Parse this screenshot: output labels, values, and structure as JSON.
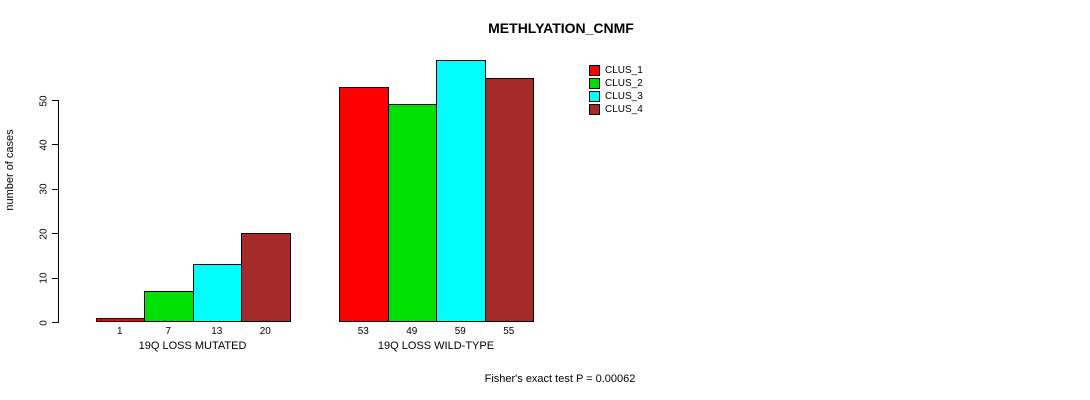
{
  "title": "METHLYATION_CNMF",
  "chart_data": {
    "type": "bar",
    "title": "METHLYATION_CNMF",
    "xlabel": "",
    "ylabel": "number of cases",
    "ylim": [
      0,
      59
    ],
    "yticks": [
      0,
      10,
      20,
      30,
      40,
      50
    ],
    "grid": false,
    "legend_position": "right",
    "categories": [
      "19Q LOSS MUTATED",
      "19Q LOSS WILD-TYPE"
    ],
    "series": [
      {
        "name": "CLUS_1",
        "color": "#ff0000",
        "values": [
          1,
          53
        ]
      },
      {
        "name": "CLUS_2",
        "color": "#00e000",
        "values": [
          7,
          49
        ]
      },
      {
        "name": "CLUS_3",
        "color": "#00ffff",
        "values": [
          13,
          59
        ]
      },
      {
        "name": "CLUS_4",
        "color": "#a52a2a",
        "values": [
          20,
          55
        ]
      }
    ],
    "bar_value_labels": [
      [
        1,
        7,
        13,
        20
      ],
      [
        53,
        49,
        59,
        55
      ]
    ]
  },
  "footer": {
    "note": "Fisher's exact test P = 0.00062"
  }
}
